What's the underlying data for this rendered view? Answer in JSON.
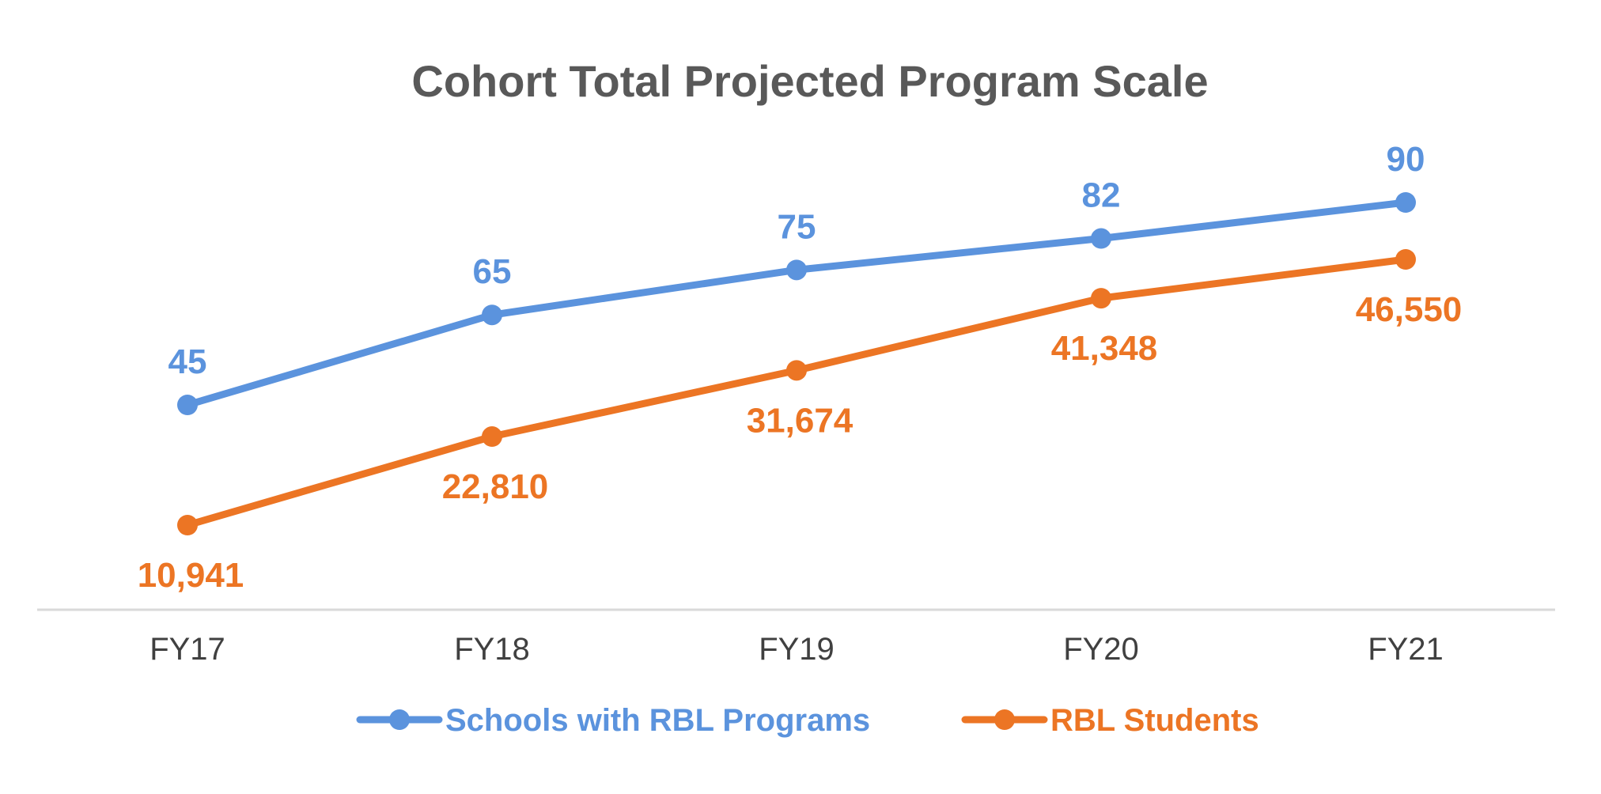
{
  "chart_data": {
    "type": "line",
    "title": "Cohort Total Projected Program Scale",
    "categories": [
      "FY17",
      "FY18",
      "FY19",
      "FY20",
      "FY21"
    ],
    "xlabel": "",
    "ylabel": "",
    "grid": false,
    "legend_position": "bottom",
    "series": [
      {
        "name": "Schools with RBL Programs",
        "color": "#5B93DD",
        "values": [
          45,
          65,
          75,
          82,
          90
        ],
        "labels": [
          "45",
          "65",
          "75",
          "82",
          "90"
        ],
        "label_position": "above"
      },
      {
        "name": "RBL Students",
        "color": "#EC7524",
        "values": [
          10941,
          22810,
          31674,
          41348,
          46550
        ],
        "labels": [
          "10,941",
          "22,810",
          "31,674",
          "41,348",
          "46,550"
        ],
        "label_position": "below"
      }
    ]
  }
}
